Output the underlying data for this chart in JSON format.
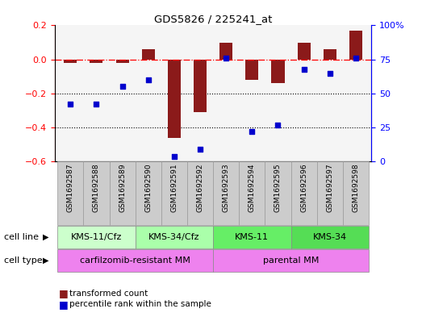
{
  "title": "GDS5826 / 225241_at",
  "samples": [
    "GSM1692587",
    "GSM1692588",
    "GSM1692589",
    "GSM1692590",
    "GSM1692591",
    "GSM1692592",
    "GSM1692593",
    "GSM1692594",
    "GSM1692595",
    "GSM1692596",
    "GSM1692597",
    "GSM1692598"
  ],
  "transformed_count": [
    -0.02,
    -0.02,
    -0.02,
    0.06,
    -0.46,
    -0.31,
    0.1,
    -0.12,
    -0.14,
    0.1,
    0.06,
    0.17
  ],
  "percentile_rank": [
    42,
    42,
    55,
    60,
    4,
    9,
    76,
    22,
    27,
    68,
    65,
    76
  ],
  "ylim_left": [
    -0.6,
    0.2
  ],
  "ylim_right": [
    0,
    100
  ],
  "yticks_left": [
    -0.6,
    -0.4,
    -0.2,
    0.0,
    0.2
  ],
  "yticks_right": [
    0,
    25,
    50,
    75,
    100
  ],
  "hline_y": 0.0,
  "dotted_lines": [
    -0.2,
    -0.4
  ],
  "bar_color": "#8B1A1A",
  "dot_color": "#0000CD",
  "cell_line_groups": [
    {
      "label": "KMS-11/Cfz",
      "start": 0,
      "end": 2,
      "color": "#CCFFCC"
    },
    {
      "label": "KMS-34/Cfz",
      "start": 3,
      "end": 5,
      "color": "#AAFFAA"
    },
    {
      "label": "KMS-11",
      "start": 6,
      "end": 8,
      "color": "#66EE66"
    },
    {
      "label": "KMS-34",
      "start": 9,
      "end": 11,
      "color": "#55DD55"
    }
  ],
  "cell_type_groups": [
    {
      "label": "carfilzomib-resistant MM",
      "start": 0,
      "end": 5,
      "color": "#EE82EE"
    },
    {
      "label": "parental MM",
      "start": 6,
      "end": 11,
      "color": "#EE82EE"
    }
  ],
  "legend_items": [
    {
      "color": "#8B1A1A",
      "label": "transformed count"
    },
    {
      "color": "#0000CD",
      "label": "percentile rank within the sample"
    }
  ],
  "bar_width": 0.5,
  "sample_bg_color": "#CCCCCC",
  "sample_grid_color": "#999999"
}
